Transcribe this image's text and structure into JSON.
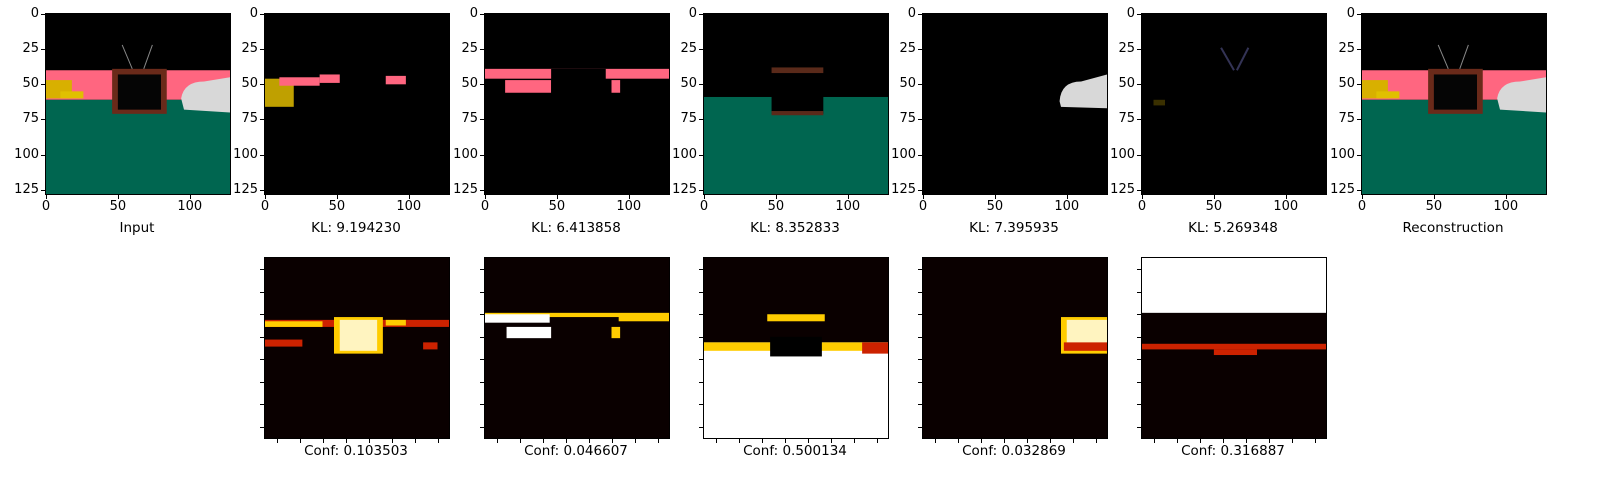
{
  "chart_data": {
    "type": "image-grid",
    "top_row": [
      {
        "id": "input",
        "label": "Input"
      },
      {
        "id": "slot1",
        "label": "KL: 9.194230"
      },
      {
        "id": "slot2",
        "label": "KL: 6.413858"
      },
      {
        "id": "slot3",
        "label": "KL: 8.352833"
      },
      {
        "id": "slot4",
        "label": "KL: 7.395935"
      },
      {
        "id": "slot5",
        "label": "KL: 5.269348"
      },
      {
        "id": "recon",
        "label": "Reconstruction"
      }
    ],
    "bottom_row": [
      {
        "id": "conf1",
        "label": "Conf: 0.103503"
      },
      {
        "id": "conf2",
        "label": "Conf: 0.046607"
      },
      {
        "id": "conf3",
        "label": "Conf: 0.500134"
      },
      {
        "id": "conf4",
        "label": "Conf: 0.032869"
      },
      {
        "id": "conf5",
        "label": "Conf: 0.316887"
      }
    ],
    "y_ticks": [
      "0",
      "25",
      "50",
      "75",
      "100",
      "125"
    ],
    "x_ticks": [
      "0",
      "50",
      "100"
    ],
    "y_tick_values": [
      0,
      25,
      50,
      75,
      100,
      125
    ],
    "x_tick_values": [
      0,
      50,
      100
    ],
    "image_size": 128,
    "colors": {
      "wall": "#ff6680",
      "floor": "#006650",
      "frame": "#6a2a1a",
      "yellow": "#d8b000",
      "car": "#d8d8d8",
      "heat_hot": "#ffffff",
      "heat_mid": "#ffcc00",
      "heat_low": "#cc2200",
      "heat_bg": "#0a0000"
    }
  }
}
